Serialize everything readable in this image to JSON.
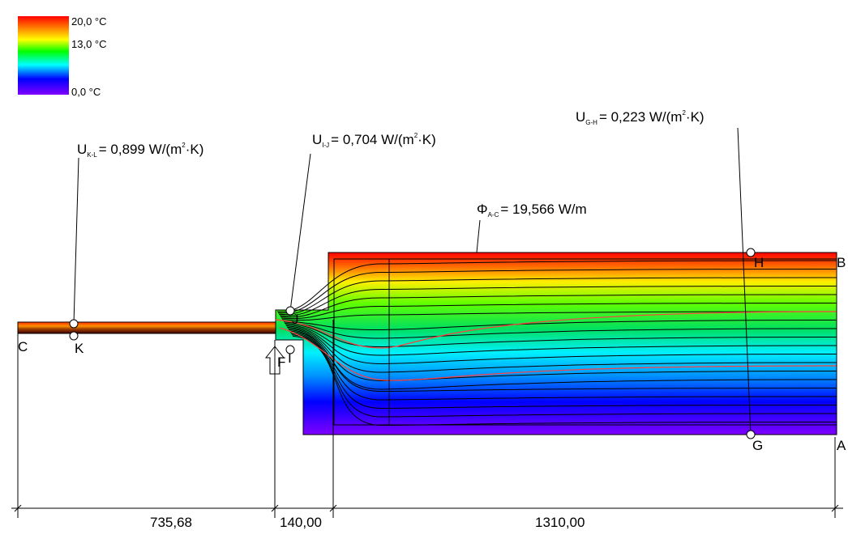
{
  "legend": {
    "labels": [
      "20,0 °C",
      "13,0 °C",
      "0,0 °C"
    ]
  },
  "annotations": [
    {
      "symbol": "U",
      "subscript": "K-L",
      "value": "= 0,899 W/(m",
      "superscript": "2",
      "tail": "·K)"
    },
    {
      "symbol": "U",
      "subscript": "I-J",
      "value": "= 0,704 W/(m",
      "superscript": "2",
      "tail": "·K)"
    },
    {
      "symbol": "U",
      "subscript": "G-H",
      "value": "= 0,223 W/(m",
      "superscript": "2",
      "tail": "·K)"
    },
    {
      "symbol": "Φ",
      "subscript": "A-C",
      "value": "= 19,566 W/m"
    }
  ],
  "points": [
    "A",
    "B",
    "C",
    "F",
    "G",
    "H",
    "I",
    "J",
    "K"
  ],
  "dimensions": [
    "735,68",
    "140,00",
    "1310,00"
  ]
}
